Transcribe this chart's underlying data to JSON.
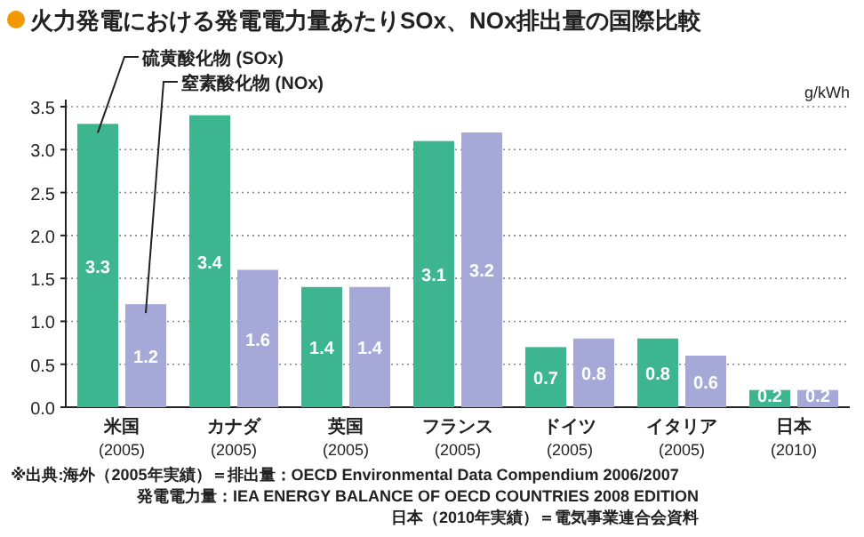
{
  "chart_data": {
    "type": "bar",
    "title": "火力発電における発電電力量あたりSOx、NOx排出量の国際比較",
    "ylabel": "g/kWh",
    "categories": [
      "米国\n(2005)",
      "カナダ\n(2005)",
      "英国\n(2005)",
      "フランス\n(2005)",
      "ドイツ\n(2005)",
      "イタリア\n(2005)",
      "日本\n(2010)"
    ],
    "series": [
      {
        "name": "硫黄酸化物 (SOx)",
        "color": "#3db58f",
        "values": [
          3.3,
          3.4,
          1.4,
          3.1,
          0.7,
          0.8,
          0.2
        ]
      },
      {
        "name": "窒素酸化物 (NOx)",
        "color": "#a6a9d8",
        "values": [
          1.2,
          1.6,
          1.4,
          3.2,
          0.8,
          0.6,
          0.2
        ]
      }
    ],
    "ylim": [
      0,
      3.5
    ],
    "yticks": [
      "0.0",
      "0.5",
      "1.0",
      "1.5",
      "2.0",
      "2.5",
      "3.0",
      "3.5"
    ],
    "grid": "y",
    "data_labels": true,
    "annotations": [
      "※出典:海外（2005年実績）＝排出量：OECD Environmental Data Compendium 2006/2007",
      "発電電力量：IEA ENERGY BALANCE OF OECD COUNTRIES 2008 EDITION",
      "日本（2010年実績）＝電気事業連合会資料"
    ]
  }
}
